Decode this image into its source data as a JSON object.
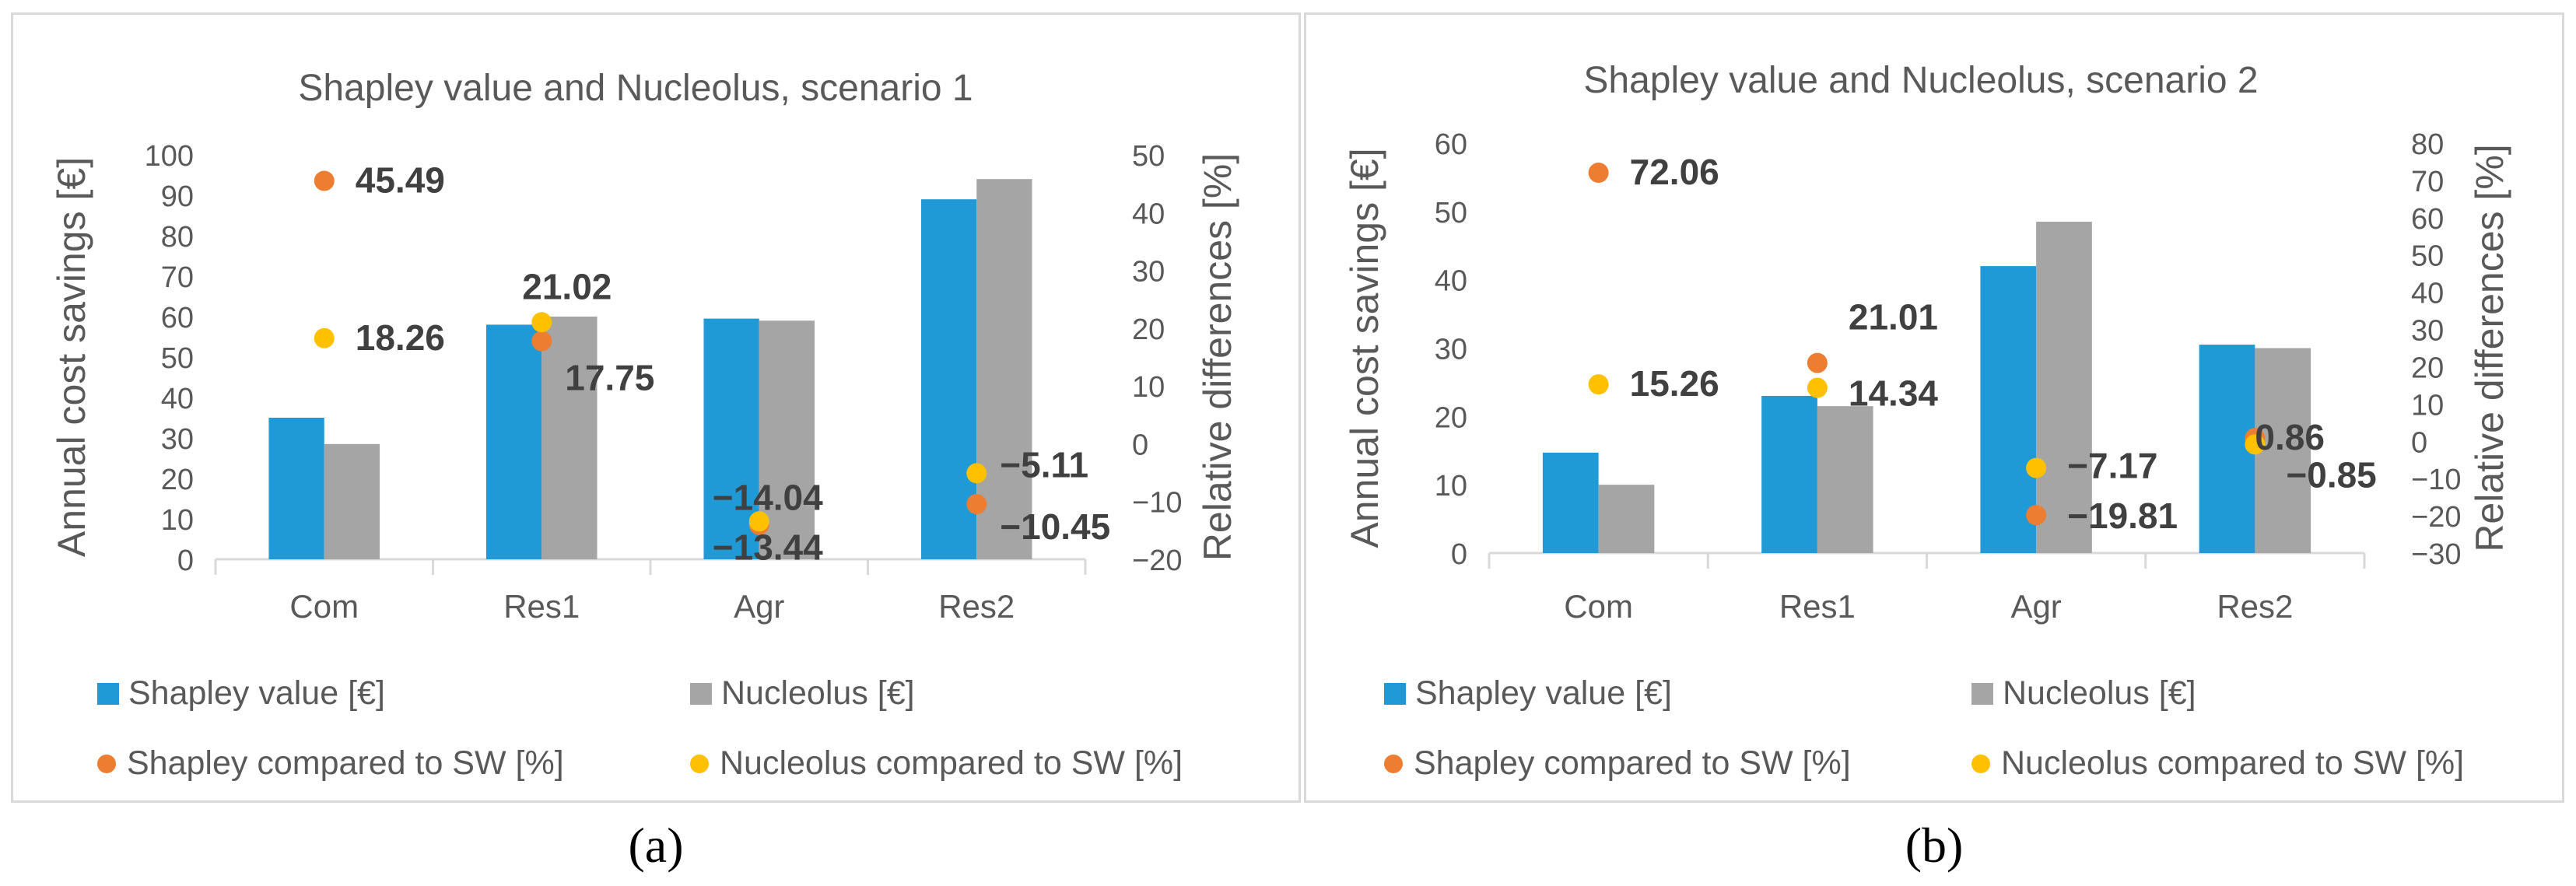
{
  "colors": {
    "shapley": "#1f9ad6",
    "nucleolus": "#a5a5a5",
    "shapley_pct": "#ed7d31",
    "nucleolus_pct": "#ffc000",
    "text": "#595959",
    "label": "#404040"
  },
  "chart_data": [
    {
      "type": "bar",
      "title": "Shapley value and Nucleolus, scenario 1",
      "panel_label": "(a)",
      "categories": [
        "Com",
        "Res1",
        "Agr",
        "Res2"
      ],
      "series": [
        {
          "name": "Shapley value [€]",
          "kind": "bar",
          "axis": "left",
          "values": [
            35,
            58,
            59.5,
            89
          ]
        },
        {
          "name": "Nucleolus [€]",
          "kind": "bar",
          "axis": "left",
          "values": [
            28.5,
            60,
            59,
            94
          ]
        },
        {
          "name": "Shapley compared to SW [%]",
          "kind": "dot",
          "axis": "right",
          "values": [
            45.49,
            17.75,
            -14.04,
            -10.45
          ]
        },
        {
          "name": "Nucleolus compared to SW [%]",
          "kind": "dot",
          "axis": "right",
          "values": [
            18.26,
            21.02,
            -13.44,
            -5.11
          ]
        }
      ],
      "ylabel": "Annual cost savings [€]",
      "y2label": "Relative differences [%]",
      "ylim": [
        0,
        100
      ],
      "yticks": [
        "0",
        "10",
        "20",
        "30",
        "40",
        "50",
        "60",
        "70",
        "80",
        "90",
        "100"
      ],
      "y2lim": [
        -20,
        50
      ],
      "y2ticks": [
        "−20",
        "−10",
        "0",
        "10",
        "20",
        "30",
        "40",
        "50"
      ],
      "data_labels": [
        {
          "text": "45.49",
          "category": 0,
          "value": 45.49
        },
        {
          "text": "18.26",
          "category": 0,
          "value": 18.26
        },
        {
          "text": "21.02",
          "category": 1,
          "value": 21.02
        },
        {
          "text": "17.75",
          "category": 1,
          "value": 17.75
        },
        {
          "text": "−13.44",
          "category": 2,
          "value": -13.44
        },
        {
          "text": "−14.04",
          "category": 2,
          "value": -14.04
        },
        {
          "text": "−5.11",
          "category": 3,
          "value": -5.11
        },
        {
          "text": "−10.45",
          "category": 3,
          "value": -10.45
        }
      ],
      "legend": [
        "Shapley value [€]",
        "Nucleolus [€]",
        "Shapley compared to SW [%]",
        "Nucleolus compared to SW [%]"
      ]
    },
    {
      "type": "bar",
      "title": "Shapley value and Nucleolus, scenario 2",
      "panel_label": "(b)",
      "categories": [
        "Com",
        "Res1",
        "Agr",
        "Res2"
      ],
      "series": [
        {
          "name": "Shapley value [€]",
          "kind": "bar",
          "axis": "left",
          "values": [
            14.7,
            23,
            42,
            30.5
          ]
        },
        {
          "name": "Nucleolus [€]",
          "kind": "bar",
          "axis": "left",
          "values": [
            10,
            21.5,
            48.5,
            30
          ]
        },
        {
          "name": "Shapley compared to SW [%]",
          "kind": "dot",
          "axis": "right",
          "values": [
            72.06,
            21.01,
            -19.81,
            0.86
          ]
        },
        {
          "name": "Nucleolus compared to SW [%]",
          "kind": "dot",
          "axis": "right",
          "values": [
            15.26,
            14.34,
            -7.17,
            -0.85
          ]
        }
      ],
      "ylabel": "Annual cost savings [€]",
      "y2label": "Relative differences [%]",
      "ylim": [
        0,
        60
      ],
      "yticks": [
        "0",
        "10",
        "20",
        "30",
        "40",
        "50",
        "60"
      ],
      "y2lim": [
        -30,
        80
      ],
      "y2ticks": [
        "−30",
        "−20",
        "−10",
        "0",
        "10",
        "20",
        "30",
        "40",
        "50",
        "60",
        "70",
        "80"
      ],
      "data_labels": [
        {
          "text": "72.06",
          "category": 0,
          "value": 72.06
        },
        {
          "text": "15.26",
          "category": 0,
          "value": 15.26
        },
        {
          "text": "21.01",
          "category": 1,
          "value": 21.01
        },
        {
          "text": "14.34",
          "category": 1,
          "value": 14.34
        },
        {
          "text": "−7.17",
          "category": 2,
          "value": -7.17
        },
        {
          "text": "−19.81",
          "category": 2,
          "value": -19.81
        },
        {
          "text": "0.86",
          "category": 3,
          "value": 0.86
        },
        {
          "text": "−0.85",
          "category": 3,
          "value": -0.85
        }
      ],
      "legend": [
        "Shapley value [€]",
        "Nucleolus [€]",
        "Shapley compared to SW [%]",
        "Nucleolus compared to SW [%]"
      ]
    }
  ]
}
